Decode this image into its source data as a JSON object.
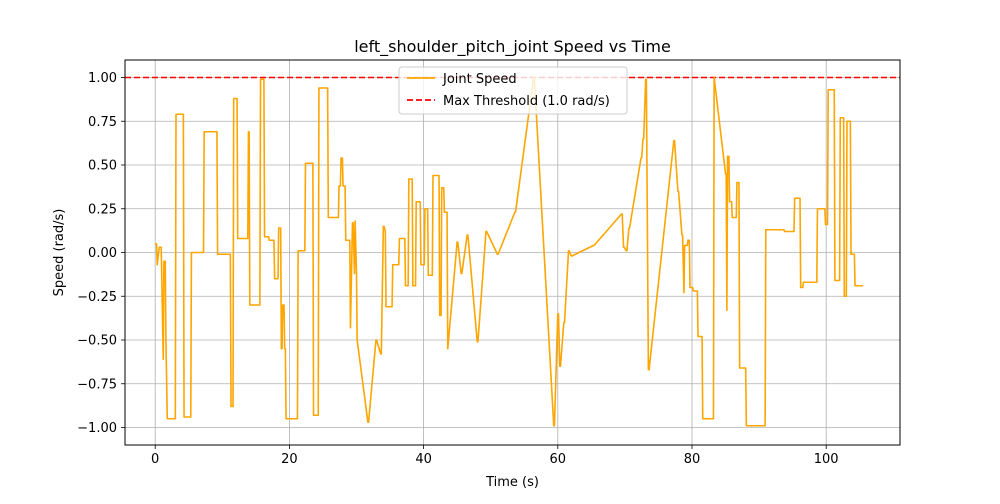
{
  "chart_data": {
    "type": "line",
    "title": "left_shoulder_pitch_joint Speed vs Time",
    "xlabel": "Time (s)",
    "ylabel": "Speed (rad/s)",
    "xlim": [
      -4.5,
      111
    ],
    "ylim": [
      -1.1,
      1.1
    ],
    "xticks": [
      0,
      20,
      40,
      60,
      80,
      100
    ],
    "yticks": [
      -1.0,
      -0.75,
      -0.5,
      -0.25,
      0.0,
      0.25,
      0.5,
      0.75,
      1.0
    ],
    "xtick_labels": [
      "0",
      "20",
      "40",
      "60",
      "80",
      "100"
    ],
    "ytick_labels": [
      "−1.00",
      "−0.75",
      "−0.50",
      "−0.25",
      "0.00",
      "0.25",
      "0.50",
      "0.75",
      "1.00"
    ],
    "grid": true,
    "legend_position": "top-center",
    "series": [
      {
        "name": "Joint Speed",
        "style": "solid",
        "color": "#ffa500",
        "x": [
          0,
          0.2,
          0.3,
          0.6,
          0.9,
          1.2,
          1.3,
          1.5,
          1.6,
          1.8,
          2.0,
          3.0,
          3.1,
          4.2,
          4.3,
          5.3,
          5.4,
          7.2,
          7.3,
          9.2,
          9.3,
          11.2,
          11.3,
          11.6,
          11.7,
          12.2,
          12.3,
          13.8,
          13.9,
          14.0,
          14.1,
          15.6,
          15.7,
          16.2,
          16.3,
          16.9,
          17.0,
          17.7,
          17.8,
          18.3,
          18.4,
          18.7,
          18.8,
          18.9,
          19.0,
          19.2,
          19.3,
          19.4,
          19.5,
          21.2,
          21.3,
          22.3,
          22.4,
          23.5,
          23.6,
          24.3,
          24.4,
          25.7,
          25.8,
          27.3,
          27.4,
          27.6,
          27.7,
          27.9,
          28.0,
          28.3,
          28.4,
          29.0,
          29.1,
          29.4,
          29.5,
          29.7,
          29.8,
          30.0,
          30.1,
          31.7,
          31.8,
          32.9,
          33.0,
          33.6,
          33.7,
          34.0,
          34.1,
          34.3,
          34.4,
          35.3,
          35.4,
          35.7,
          35.8,
          36.3,
          36.4,
          37.2,
          37.3,
          37.7,
          37.8,
          38.3,
          38.4,
          38.8,
          38.9,
          39.5,
          39.6,
          40.1,
          40.2,
          40.6,
          40.7,
          41.3,
          41.4,
          42.3,
          42.4,
          42.6,
          42.7,
          43.0,
          43.1,
          43.5,
          43.6,
          45.0,
          45.1,
          45.6,
          45.7,
          46.5,
          46.6,
          48.0,
          48.1,
          49.3,
          49.4,
          51.0,
          51.1,
          53.6,
          53.7,
          56.4,
          56.5,
          59.4,
          59.5,
          60.0,
          60.1,
          60.3,
          60.4,
          60.9,
          61.0,
          61.6,
          61.7,
          62.0,
          62.1,
          65.3,
          65.4,
          69.5,
          69.6,
          69.8,
          69.9,
          70.2,
          70.3,
          70.6,
          70.7,
          72.4,
          72.5,
          72.7,
          72.8,
          73.1,
          73.2,
          73.5,
          73.6,
          77.3,
          77.4,
          77.9,
          78.0,
          78.5,
          78.6,
          78.8,
          78.9,
          79.3,
          79.4,
          79.6,
          79.7,
          80.1,
          80.2,
          80.8,
          80.9,
          81.5,
          81.6,
          83.2,
          83.3,
          85.0,
          85.1,
          85.2,
          85.3,
          85.5,
          85.6,
          85.9,
          86.0,
          86.6,
          86.7,
          87.0,
          87.1,
          88.0,
          88.1,
          90.9,
          91.0,
          93.7,
          93.8,
          95.2,
          95.3,
          96.1,
          96.2,
          96.5,
          96.6,
          98.6,
          98.7,
          99.8,
          99.9,
          100.2,
          100.3,
          101.2,
          101.3,
          102.0,
          102.1,
          102.6,
          102.7,
          103.0,
          103.1,
          103.6,
          103.7,
          104.2,
          104.3,
          105.5
        ],
        "y": [
          0.05,
          0.05,
          -0.07,
          0.03,
          0.03,
          -0.61,
          -0.05,
          -0.05,
          -0.5,
          -0.95,
          -0.95,
          -0.95,
          0.79,
          0.79,
          -0.94,
          -0.94,
          0.0,
          0.0,
          0.69,
          0.69,
          -0.01,
          -0.01,
          -0.88,
          -0.88,
          0.88,
          0.88,
          0.08,
          0.08,
          0.69,
          0.69,
          -0.3,
          -0.3,
          0.99,
          0.99,
          0.09,
          0.09,
          0.07,
          0.07,
          -0.15,
          -0.15,
          0.14,
          0.14,
          -0.55,
          -0.55,
          -0.3,
          -0.3,
          -0.55,
          -0.55,
          -0.95,
          -0.95,
          0.01,
          0.01,
          0.51,
          0.51,
          -0.93,
          -0.93,
          0.94,
          0.94,
          0.2,
          0.2,
          0.38,
          0.38,
          0.54,
          0.54,
          0.38,
          0.38,
          0.07,
          0.07,
          -0.43,
          0.17,
          0.17,
          -0.12,
          0.18,
          -0.12,
          -0.5,
          -0.97,
          -0.97,
          -0.5,
          -0.5,
          -0.58,
          -0.58,
          0.15,
          0.15,
          0.12,
          -0.31,
          -0.31,
          -0.07,
          -0.07,
          -0.07,
          -0.07,
          0.08,
          0.08,
          -0.19,
          -0.19,
          0.42,
          0.42,
          -0.19,
          -0.19,
          0.29,
          0.29,
          -0.07,
          -0.07,
          0.25,
          0.25,
          -0.13,
          -0.13,
          0.44,
          0.44,
          -0.36,
          -0.36,
          0.37,
          0.37,
          0.23,
          0.23,
          -0.55,
          0.06,
          0.06,
          -0.12,
          -0.12,
          0.1,
          0.1,
          -0.51,
          -0.51,
          0.12,
          0.12,
          -0.01,
          -0.01,
          0.23,
          0.23,
          1.0,
          1.0,
          -0.99,
          -0.99,
          -0.35,
          -0.35,
          -0.65,
          -0.65,
          -0.4,
          -0.4,
          0.01,
          0.01,
          -0.02,
          -0.02,
          0.04,
          0.04,
          0.22,
          0.22,
          0.03,
          0.03,
          0.01,
          0.01,
          0.14,
          0.14,
          0.54,
          0.54,
          0.65,
          0.65,
          0.99,
          0.99,
          -0.67,
          -0.67,
          0.64,
          0.64,
          0.35,
          0.35,
          0.1,
          0.1,
          -0.23,
          0.04,
          0.04,
          0.07,
          0.07,
          -0.2,
          -0.2,
          -0.22,
          -0.22,
          -0.48,
          -0.48,
          -0.95,
          -0.95,
          1.0,
          0.45,
          0.45,
          -0.33,
          0.55,
          0.55,
          0.29,
          0.29,
          0.2,
          0.2,
          0.4,
          0.4,
          -0.66,
          -0.66,
          -0.99,
          -0.99,
          0.13,
          0.13,
          0.12,
          0.12,
          0.31,
          0.31,
          -0.2,
          -0.2,
          -0.17,
          -0.17,
          0.25,
          0.25,
          0.16,
          0.16,
          0.93,
          0.93,
          -0.16,
          -0.16,
          0.77,
          0.77,
          -0.25,
          -0.25,
          0.75,
          0.75,
          -0.01,
          -0.01,
          -0.19,
          -0.19
        ]
      },
      {
        "name": "Max Threshold (1.0 rad/s)",
        "style": "dashed",
        "color": "#ff0000",
        "x": [
          -4.5,
          111
        ],
        "y": [
          1.0,
          1.0
        ]
      }
    ]
  }
}
